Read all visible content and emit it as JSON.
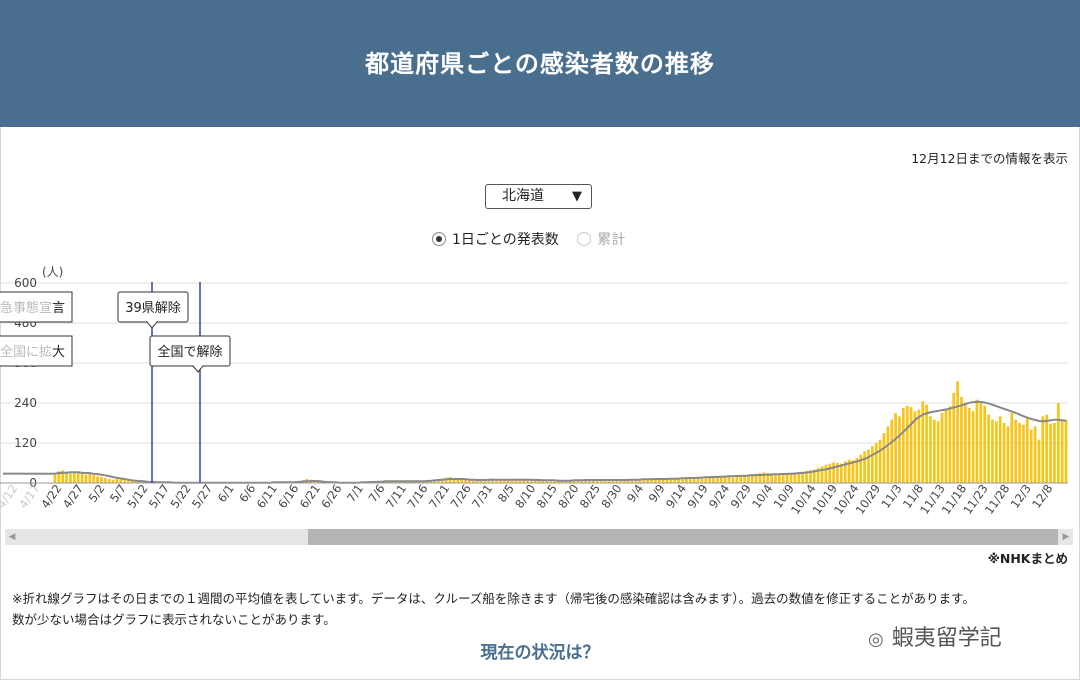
{
  "header": {
    "title": "都道府県ごとの感染者数の推移"
  },
  "date_note": "12月12日までの情報を表示",
  "prefecture_select": {
    "value": "北海道",
    "caret": "▼"
  },
  "radios": [
    {
      "label": "1日ごとの発表数",
      "selected": true
    },
    {
      "label": "累計",
      "selected": false
    }
  ],
  "chart_data": {
    "type": "bar",
    "ylabel": "(人)",
    "ylim": [
      0,
      600
    ],
    "y_ticks": [
      0,
      120,
      240,
      360,
      480,
      600
    ],
    "x_tick_labels": [
      "4/22",
      "4/27",
      "5/2",
      "5/7",
      "5/12",
      "5/17",
      "5/22",
      "5/27",
      "6/1",
      "6/6",
      "6/11",
      "6/16",
      "6/21",
      "6/26",
      "7/1",
      "7/6",
      "7/11",
      "7/16",
      "7/21",
      "7/26",
      "7/31",
      "8/5",
      "8/10",
      "8/15",
      "8/20",
      "8/25",
      "8/30",
      "9/4",
      "9/9",
      "9/14",
      "9/19",
      "9/24",
      "9/29",
      "10/4",
      "10/9",
      "10/14",
      "10/19",
      "10/24",
      "10/29",
      "11/3",
      "11/8",
      "11/13",
      "11/18",
      "11/23",
      "11/28",
      "12/3",
      "12/8"
    ],
    "series": [
      {
        "type": "bar",
        "color": "#f5c518",
        "values": [
          25,
          35,
          38,
          30,
          28,
          32,
          34,
          30,
          25,
          28,
          25,
          20,
          18,
          15,
          12,
          10,
          14,
          12,
          8,
          9,
          6,
          5,
          7,
          4,
          3,
          3,
          2,
          2,
          1,
          2,
          1,
          1,
          2,
          1,
          3,
          1,
          0,
          0,
          1,
          0,
          1,
          0,
          1,
          1,
          2,
          1,
          1,
          1,
          0,
          2,
          1,
          1,
          0,
          2,
          1,
          2,
          3,
          2,
          1,
          1,
          0,
          1,
          1,
          2,
          8,
          12,
          10,
          8,
          6,
          4,
          2,
          1,
          0,
          0,
          1,
          0,
          0,
          1,
          2,
          1,
          3,
          4,
          5,
          6,
          4,
          3,
          5,
          7,
          8,
          6,
          5,
          4,
          4,
          3,
          3,
          4,
          5,
          6,
          10,
          12,
          14,
          16,
          18,
          14,
          12,
          10,
          9,
          8,
          7,
          6,
          8,
          10,
          12,
          14,
          12,
          10,
          8,
          9,
          10,
          11,
          13,
          12,
          10,
          9,
          8,
          7,
          6,
          5,
          5,
          6,
          8,
          6,
          5,
          7,
          8,
          9,
          10,
          12,
          10,
          8,
          6,
          7,
          9,
          11,
          10,
          9,
          8,
          7,
          10,
          12,
          10,
          9,
          8,
          10,
          12,
          14,
          13,
          12,
          11,
          10,
          12,
          14,
          16,
          18,
          16,
          15,
          14,
          13,
          14,
          16,
          18,
          20,
          22,
          20,
          18,
          16,
          18,
          20,
          22,
          24,
          26,
          28,
          30,
          32,
          30,
          28,
          26,
          25,
          24,
          26,
          28,
          30,
          32,
          34,
          36,
          38,
          40,
          45,
          50,
          55,
          58,
          62,
          60,
          58,
          65,
          70,
          68,
          75,
          85,
          95,
          100,
          110,
          120,
          130,
          150,
          170,
          190,
          210,
          200,
          225,
          232,
          228,
          215,
          220,
          245,
          235,
          200,
          190,
          185,
          210,
          220,
          230,
          270,
          305,
          258,
          240,
          225,
          215,
          250,
          245,
          232,
          205,
          190,
          185,
          200,
          180,
          170,
          210,
          190,
          180,
          175,
          195,
          160,
          170,
          130,
          200,
          205,
          178,
          180,
          240,
          190,
          190
        ],
        "note": "daily reported cases, Hokkaido, from approx. 4/17 to 12/12"
      },
      {
        "type": "line",
        "color": "#888888",
        "note": "7-day average",
        "values": [
          28,
          30,
          31,
          31,
          32,
          32,
          32,
          31,
          30,
          30,
          28,
          27,
          25,
          23,
          21,
          18,
          16,
          14,
          12,
          10,
          8,
          7,
          6,
          5,
          4,
          3,
          3,
          2,
          2,
          2,
          2,
          1,
          1,
          1,
          1,
          1,
          1,
          1,
          1,
          1,
          1,
          1,
          1,
          1,
          1,
          1,
          1,
          1,
          1,
          1,
          1,
          1,
          1,
          1,
          1,
          1,
          1,
          2,
          2,
          2,
          2,
          2,
          2,
          3,
          4,
          5,
          5,
          6,
          6,
          5,
          4,
          3,
          2,
          2,
          1,
          1,
          1,
          1,
          1,
          1,
          2,
          2,
          3,
          3,
          4,
          4,
          5,
          5,
          5,
          5,
          5,
          5,
          5,
          5,
          5,
          5,
          5,
          6,
          7,
          8,
          9,
          10,
          11,
          12,
          12,
          12,
          12,
          11,
          10,
          10,
          9,
          9,
          9,
          10,
          10,
          10,
          10,
          10,
          10,
          10,
          10,
          10,
          10,
          10,
          10,
          9,
          9,
          8,
          8,
          8,
          8,
          7,
          7,
          7,
          7,
          8,
          8,
          8,
          9,
          9,
          9,
          9,
          9,
          9,
          9,
          9,
          9,
          9,
          9,
          9,
          10,
          10,
          10,
          11,
          11,
          11,
          12,
          12,
          12,
          12,
          13,
          13,
          13,
          14,
          14,
          15,
          15,
          16,
          16,
          17,
          17,
          18,
          18,
          19,
          19,
          20,
          20,
          21,
          21,
          22,
          22,
          23,
          23,
          24,
          24,
          25,
          25,
          26,
          26,
          27,
          27,
          28,
          28,
          29,
          30,
          31,
          32,
          34,
          36,
          38,
          40,
          42,
          45,
          48,
          51,
          54,
          57,
          60,
          63,
          66,
          70,
          74,
          80,
          86,
          93,
          100,
          108,
          117,
          126,
          136,
          146,
          157,
          168,
          180,
          192,
          200,
          206,
          210,
          213,
          215,
          217,
          219,
          221,
          224,
          227,
          230,
          234,
          238,
          241,
          243,
          244,
          243,
          241,
          238,
          234,
          230,
          226,
          222,
          218,
          214,
          210,
          205,
          200,
          196,
          192,
          189,
          186,
          185,
          186,
          188,
          190,
          190,
          188,
          187
        ]
      }
    ],
    "annotations": [
      {
        "label": "急事態宣言",
        "type": "tooltip-clipped"
      },
      {
        "label": "全国に拡大",
        "type": "tooltip-clipped"
      },
      {
        "label": "39県解除",
        "type": "vline",
        "at": "5/14"
      },
      {
        "label": "全国で解除",
        "type": "vline",
        "at": "5/25"
      }
    ],
    "clipped_x_labels": [
      "4/12",
      "4/17"
    ]
  },
  "source": "※NHKまとめ",
  "footnote": {
    "line1": "※折れ線グラフはその日までの１週間の平均値を表しています。データは、クルーズ船を除きます（帰宅後の感染確認は含みます）。過去の数値を修正することがあります。",
    "line2": "数が少ない場合はグラフに表示されないことがあります。"
  },
  "status_link": "現在の状況は？",
  "watermark": {
    "text": "蝦夷留学記",
    "icon": "wechat-icon"
  },
  "scrollbar": {
    "left_arrow": "◀",
    "right_arrow": "▶"
  }
}
